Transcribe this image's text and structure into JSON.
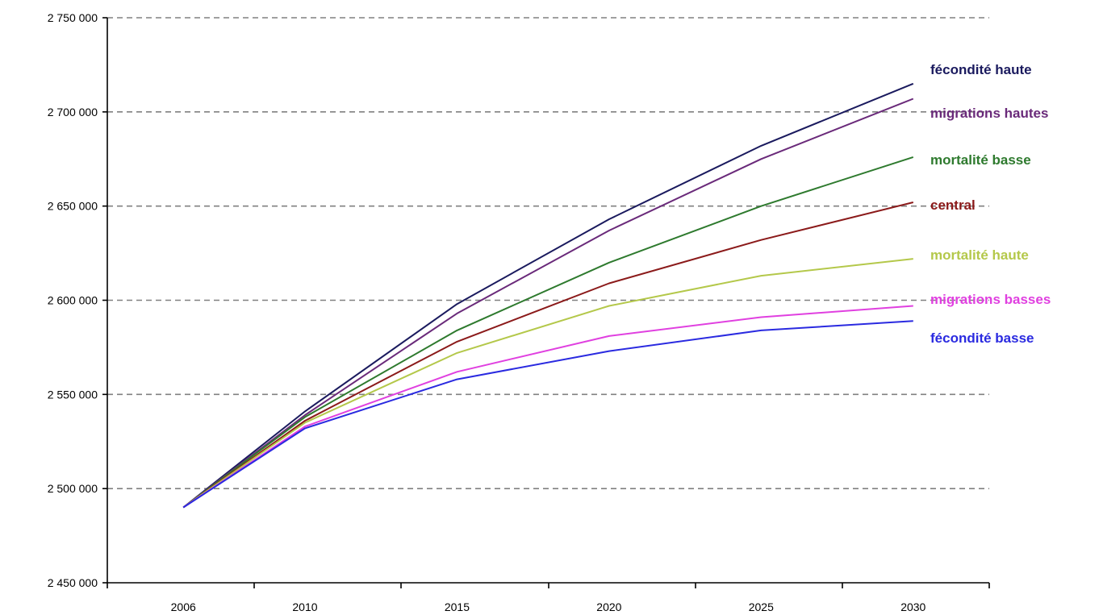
{
  "chart_data": {
    "type": "line",
    "x": [
      2006,
      2010,
      2015,
      2020,
      2025,
      2030
    ],
    "x_ticks": [
      "2006",
      "2010",
      "2015",
      "2020",
      "2025",
      "2030"
    ],
    "y_ticks": [
      "2 450 000",
      "2 500 000",
      "2 550 000",
      "2 600 000",
      "2 650 000",
      "2 700 000",
      "2 750 000"
    ],
    "ylim": [
      2450000,
      2750000
    ],
    "xlim": [
      2003.5,
      2032.5
    ],
    "grid": true,
    "series": [
      {
        "name": "fécondité haute",
        "color": "#1a1a5e",
        "values": [
          2490000,
          2541000,
          2598000,
          2643000,
          2682000,
          2715000
        ]
      },
      {
        "name": "migrations hautes",
        "color": "#6a2a7a",
        "values": [
          2490000,
          2539000,
          2593000,
          2637000,
          2675000,
          2707000
        ]
      },
      {
        "name": "mortalité basse",
        "color": "#2e7a2e",
        "values": [
          2490000,
          2538000,
          2584000,
          2620000,
          2650000,
          2676000
        ]
      },
      {
        "name": "central",
        "color": "#8b1a1a",
        "values": [
          2490000,
          2536000,
          2578000,
          2609000,
          2632000,
          2652000
        ]
      },
      {
        "name": "mortalité haute",
        "color": "#b4c84a",
        "values": [
          2490000,
          2535000,
          2572000,
          2597000,
          2613000,
          2622000
        ]
      },
      {
        "name": "migrations basses",
        "color": "#e040e0",
        "values": [
          2490000,
          2533000,
          2562000,
          2581000,
          2591000,
          2597000
        ]
      },
      {
        "name": "fécondité basse",
        "color": "#2a2ae0",
        "values": [
          2490000,
          2532000,
          2558000,
          2573000,
          2584000,
          2589000
        ]
      }
    ]
  }
}
